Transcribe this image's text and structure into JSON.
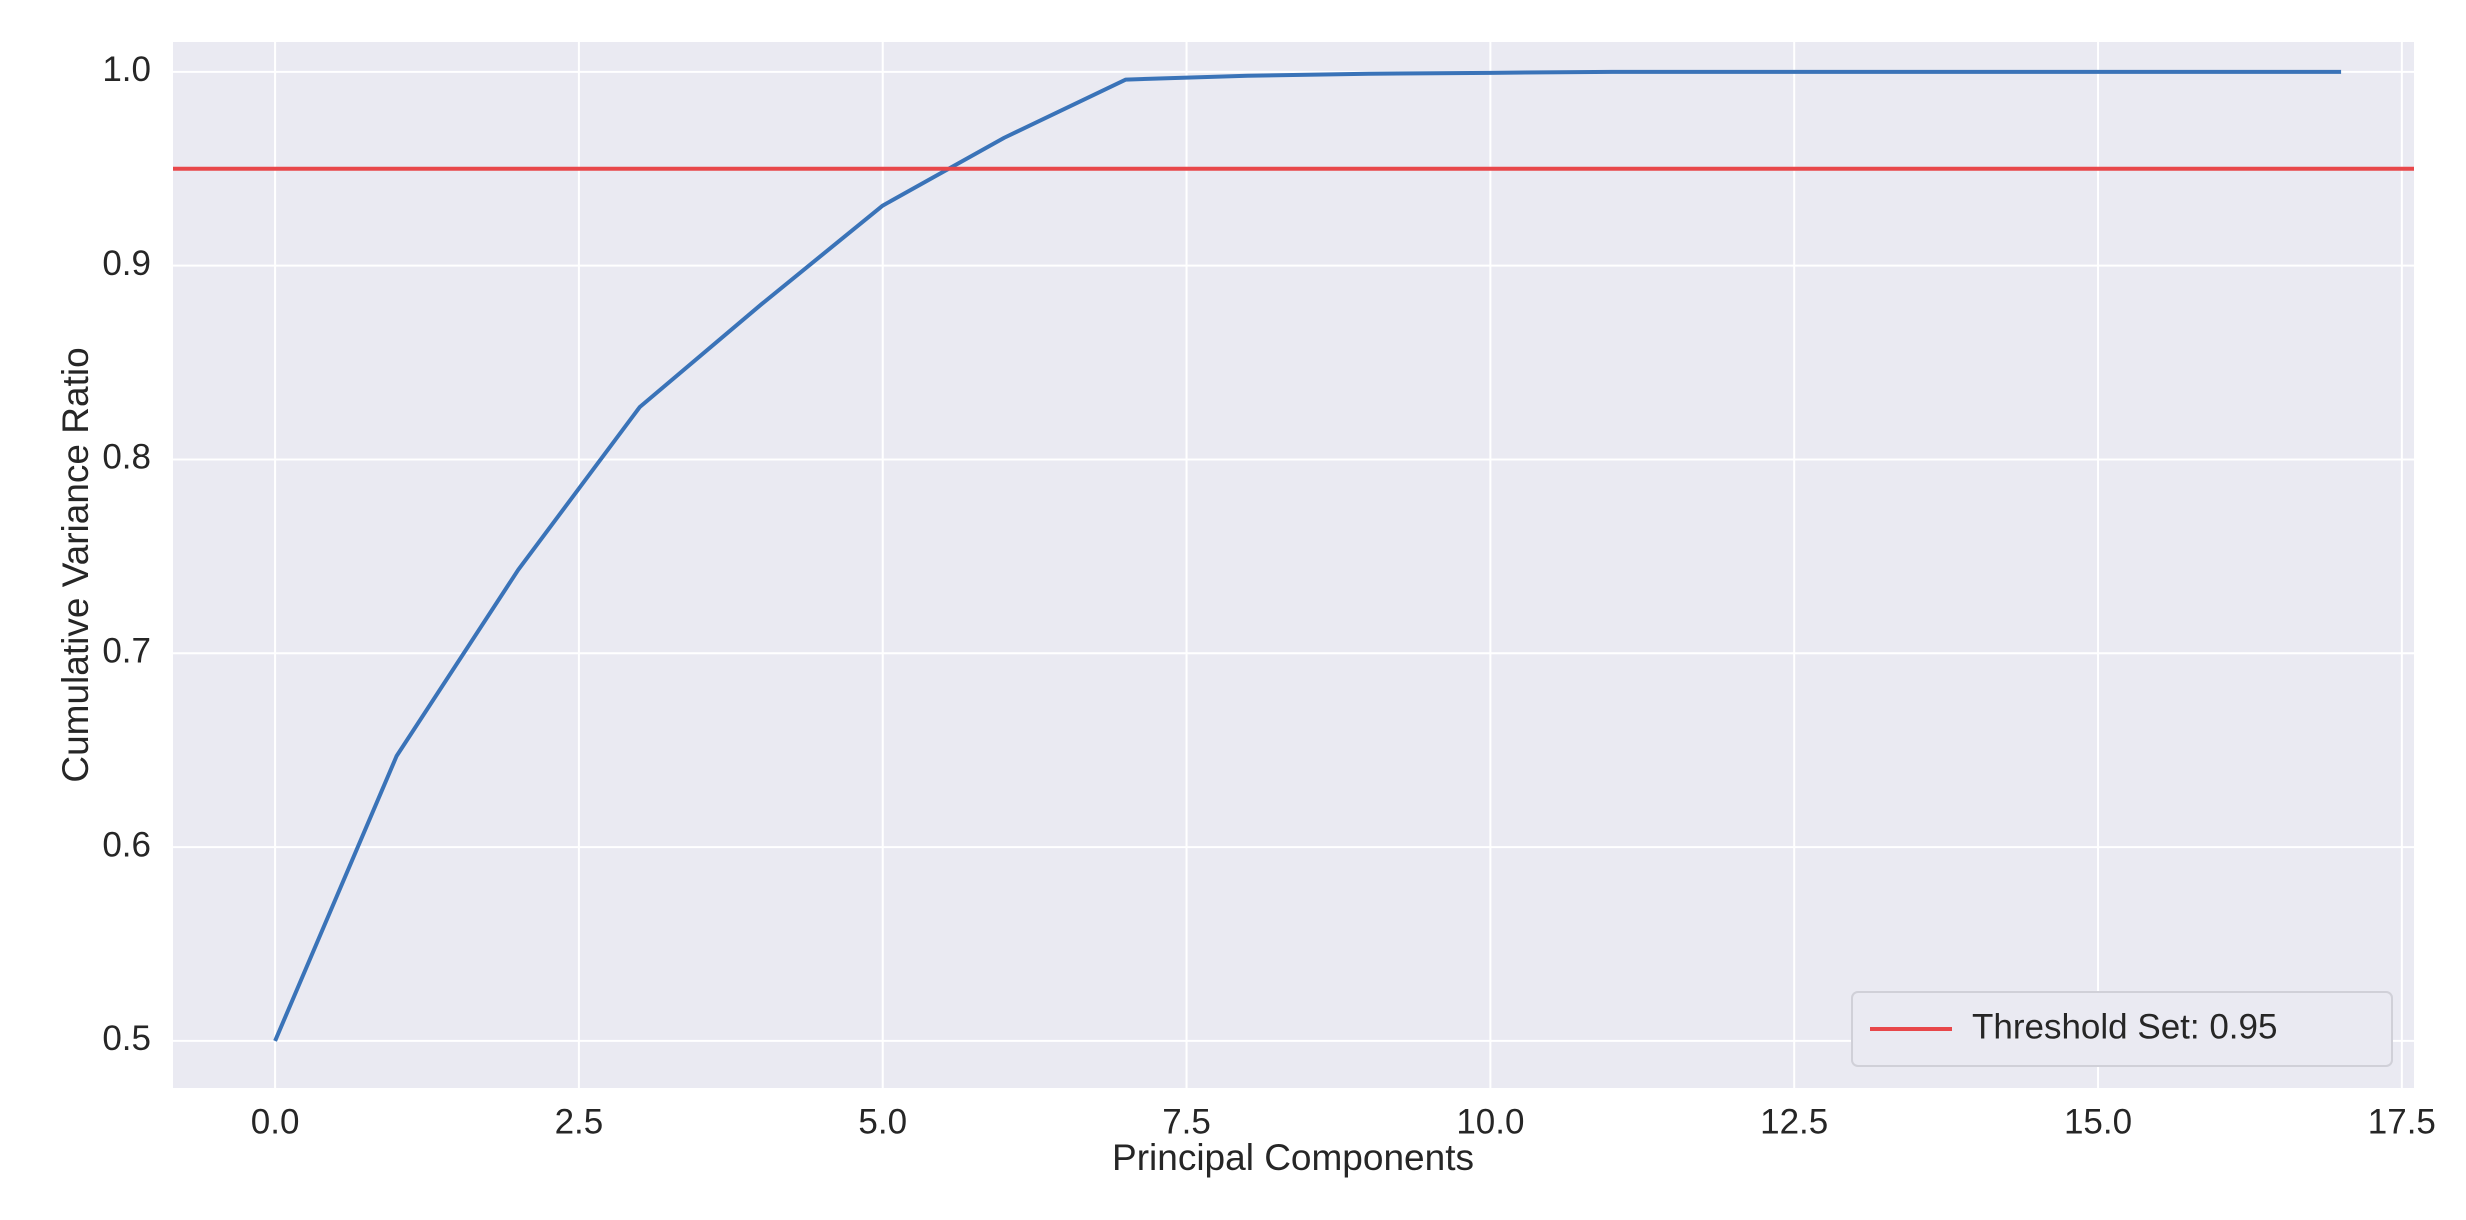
{
  "chart_data": {
    "type": "line",
    "x_label": "Principal Components",
    "y_label": "Cumulative Variance Ratio",
    "x": [
      0,
      1,
      2,
      3,
      4,
      5,
      6,
      7,
      8,
      9,
      10,
      11,
      12,
      13,
      14,
      15,
      16,
      17
    ],
    "values": [
      0.5,
      0.647,
      0.743,
      0.827,
      0.88,
      0.931,
      0.966,
      0.996,
      0.998,
      0.999,
      0.9995,
      1.0,
      1.0,
      1.0,
      1.0,
      1.0,
      1.0,
      1.0
    ],
    "color": "#3a73b8",
    "reference_lines": [
      {
        "y": 0.95,
        "name": "Threshold Set: 0.95",
        "color": "#e8474a"
      }
    ],
    "xlim": [
      -0.84,
      17.6
    ],
    "ylim": [
      0.4757,
      1.0154
    ],
    "xticks": [
      {
        "value": 0,
        "label": "0.0"
      },
      2.5,
      {
        "value": 5,
        "label": "5.0"
      },
      7.5,
      {
        "value": 10,
        "label": "10.0"
      },
      12.5,
      {
        "value": 15,
        "label": "15.0"
      },
      17.5
    ],
    "yticks": [
      0.5,
      0.6,
      0.7,
      0.8,
      0.9,
      {
        "value": 1,
        "label": "1.0"
      }
    ],
    "grid": true,
    "legend_position": "lower right"
  }
}
